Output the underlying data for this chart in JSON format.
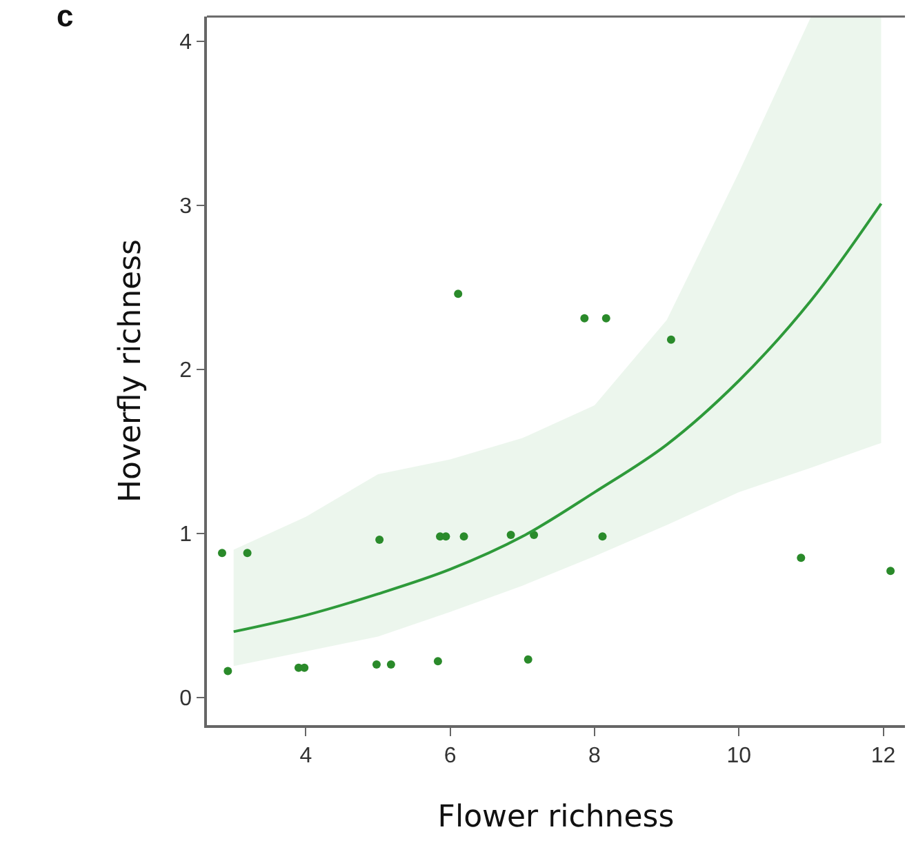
{
  "chart_data": {
    "type": "scatter",
    "xlabel": "Flower richness",
    "ylabel": "Hoverfly richness",
    "annotations": [
      "c"
    ],
    "xlim": [
      2.63,
      12.3
    ],
    "ylim": [
      -0.17,
      4.15
    ],
    "xticks": [
      4,
      6,
      8,
      10,
      12
    ],
    "yticks": [
      0,
      1,
      2,
      3,
      4
    ],
    "grid": false,
    "series": [
      {
        "marker": "circle",
        "color": "#2a8a2a",
        "x": [
          2.84,
          3.19,
          2.92,
          3.9,
          3.98,
          4.98,
          5.18,
          5.83,
          7.08,
          5.02,
          5.86,
          5.94,
          6.19,
          6.84,
          7.16,
          8.11,
          10.86,
          12.1,
          6.11,
          7.86,
          8.16,
          9.06
        ],
        "values": [
          0.88,
          0.88,
          0.16,
          0.18,
          0.18,
          0.2,
          0.2,
          0.22,
          0.23,
          0.96,
          0.98,
          0.98,
          0.98,
          0.99,
          0.99,
          0.98,
          0.85,
          0.77,
          2.46,
          2.31,
          2.31,
          2.18
        ]
      },
      {
        "type": "line",
        "marker": "none",
        "color": "#2e9a3a",
        "line_style": "solid",
        "x": [
          3,
          4,
          5,
          6,
          7,
          8,
          9,
          10,
          11,
          11.97
        ],
        "values": [
          0.4,
          0.5,
          0.63,
          0.78,
          0.98,
          1.25,
          1.54,
          1.93,
          2.42,
          3.01
        ],
        "lower": [
          0.19,
          0.28,
          0.37,
          0.52,
          0.68,
          0.86,
          1.05,
          1.25,
          1.4,
          1.55
        ],
        "upper": [
          0.9,
          1.1,
          1.36,
          1.45,
          1.58,
          1.78,
          2.3,
          3.2,
          4.15,
          4.15
        ]
      }
    ]
  }
}
